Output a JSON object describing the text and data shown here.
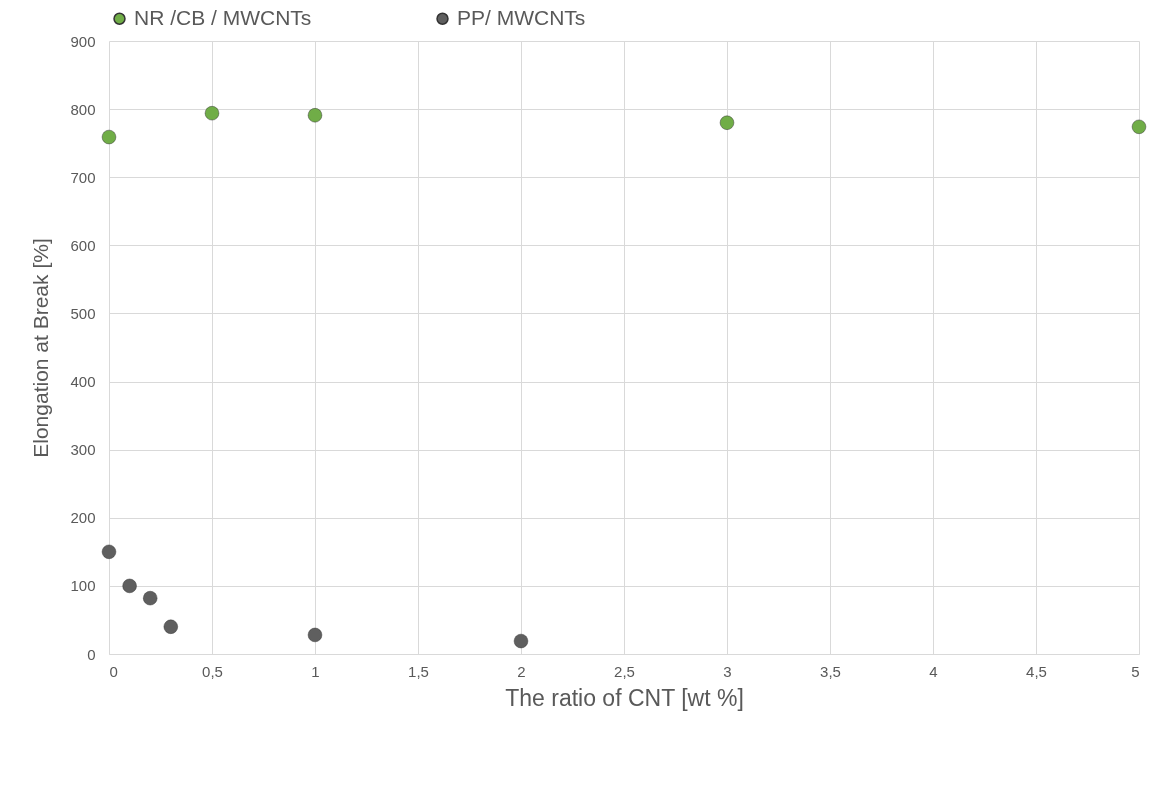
{
  "chart_data": {
    "type": "scatter",
    "xlabel": "The ratio of CNT [wt %]",
    "ylabel": "Elongation at Break [%]",
    "xlim": [
      0,
      5
    ],
    "xticks": [
      0,
      {
        "value": 0.5,
        "label": "0,5"
      },
      1,
      {
        "value": 1.5,
        "label": "1,5"
      },
      2,
      {
        "value": 2.5,
        "label": "2,5"
      },
      3,
      {
        "value": 3.5,
        "label": "3,5"
      },
      4,
      {
        "value": 4.5,
        "label": "4,5"
      },
      5
    ],
    "ylim": [
      0,
      900
    ],
    "yticks": [
      0,
      100,
      200,
      300,
      400,
      500,
      600,
      700,
      800,
      900
    ],
    "grid": true,
    "legend": "top",
    "marker": "circle",
    "series": [
      {
        "name": "NR /CB / MWCNTs",
        "color": "#70ad47",
        "x": [
          0,
          0.5,
          1,
          3,
          5
        ],
        "values": [
          759,
          794,
          791,
          780,
          774
        ]
      },
      {
        "name": "PP/ MWCNTs",
        "color": "#5f5f5f",
        "x": [
          0,
          0.1,
          0.2,
          0.3,
          1,
          2
        ],
        "values": [
          150,
          100,
          82,
          40,
          28,
          19
        ]
      }
    ]
  }
}
